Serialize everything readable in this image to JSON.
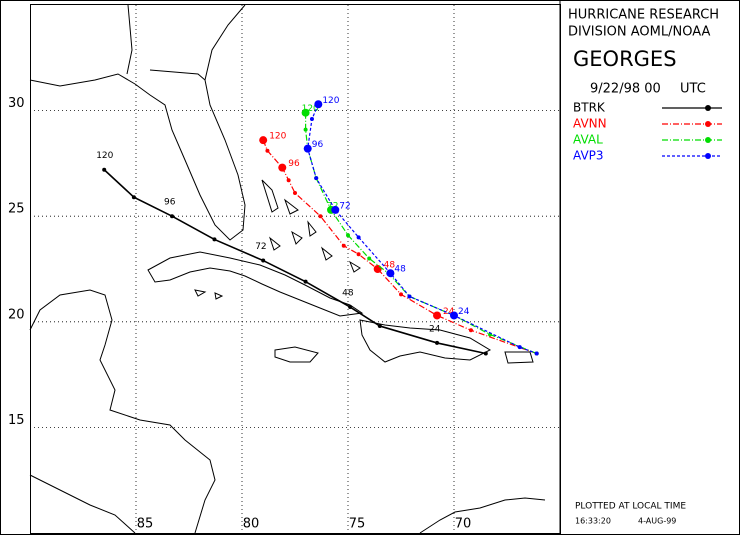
{
  "chart_data": {
    "type": "track-map",
    "source": [
      "HURRICANE RESEARCH",
      "DIVISION AOML/NOAA"
    ],
    "title": "GEORGES",
    "date": "9/22/98 00",
    "timezone": "UTC",
    "footer": "PLOTTED AT LOCAL TIME",
    "plot_time": "16:33:20",
    "plot_date": "4-AUG-99",
    "xlim": [
      90,
      65
    ],
    "ylim": [
      10,
      35
    ],
    "xticks": [
      85,
      80,
      75,
      70
    ],
    "yticks": [
      15,
      20,
      25,
      30
    ],
    "grid": true,
    "series": [
      {
        "name": "BTRK",
        "color": "#000000",
        "dash": "solid",
        "x": [
          86.5,
          85.1,
          83.3,
          81.3,
          79.0,
          77.0,
          74.9,
          73.5,
          70.8,
          68.5
        ],
        "values": [
          27.2,
          25.9,
          25.0,
          23.9,
          22.9,
          21.9,
          20.7,
          19.8,
          19.0,
          18.5
        ],
        "hours": [
          120,
          null,
          96,
          null,
          72,
          null,
          48,
          null,
          24,
          null
        ]
      },
      {
        "name": "AVNN",
        "color": "#ff0000",
        "dash": "dashdot",
        "x": [
          79.0,
          78.8,
          78.1,
          77.8,
          77.5,
          76.3,
          75.2,
          74.5,
          73.6,
          72.5,
          70.8,
          69.2,
          66.1
        ],
        "values": [
          28.6,
          28.1,
          27.3,
          26.7,
          26.1,
          25.0,
          23.6,
          23.2,
          22.5,
          21.3,
          20.3,
          19.6,
          18.5
        ],
        "hours": [
          120,
          null,
          96,
          null,
          null,
          null,
          null,
          null,
          48,
          null,
          24,
          null,
          null
        ]
      },
      {
        "name": "AVAL",
        "color": "#00dd00",
        "dash": "dashdot",
        "x": [
          77.0,
          77.0,
          76.9,
          76.5,
          75.8,
          75.0,
          74.0,
          73.1,
          72.1,
          70.0,
          68.3,
          66.1
        ],
        "values": [
          29.9,
          29.1,
          28.2,
          26.8,
          25.3,
          24.1,
          23.0,
          22.3,
          21.2,
          20.3,
          19.4,
          18.5
        ],
        "hours": [
          120,
          null,
          null,
          null,
          72,
          null,
          null,
          null,
          null,
          null,
          null,
          null
        ]
      },
      {
        "name": "AVP3",
        "color": "#0000ff",
        "dash": "dashed",
        "x": [
          76.4,
          76.7,
          76.9,
          76.5,
          75.6,
          74.5,
          73.0,
          72.1,
          70.0,
          66.9,
          66.1
        ],
        "values": [
          30.3,
          29.6,
          28.2,
          26.8,
          25.3,
          24.0,
          22.3,
          21.2,
          20.3,
          18.8,
          18.5
        ],
        "hours": [
          120,
          null,
          96,
          null,
          72,
          null,
          48,
          null,
          24,
          null,
          null
        ]
      }
    ]
  }
}
